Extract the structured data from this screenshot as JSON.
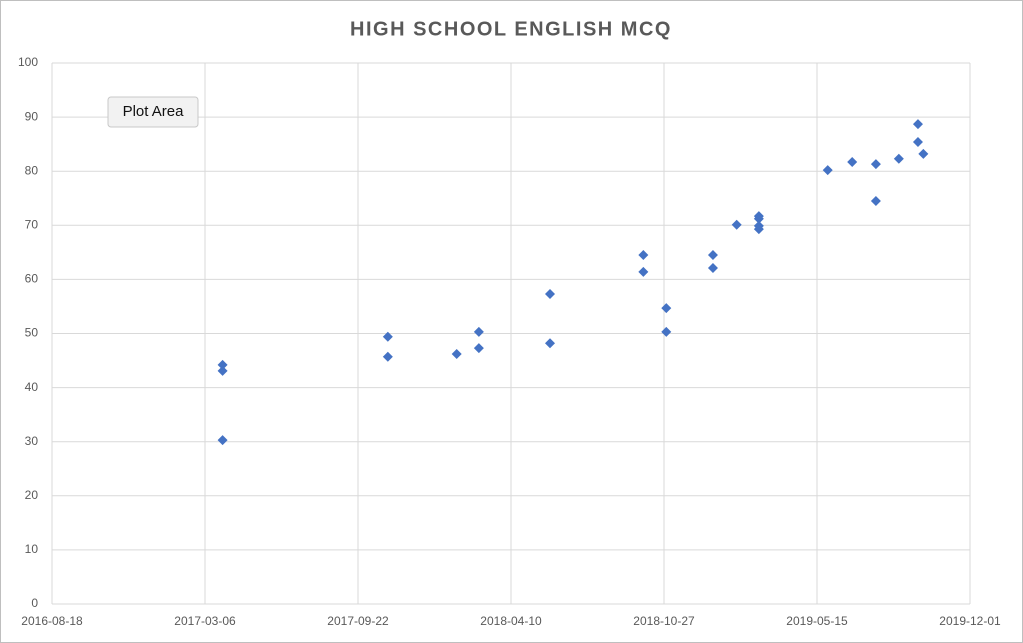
{
  "chart_data": {
    "type": "scatter",
    "title": "HIGH SCHOOL ENGLISH MCQ",
    "tooltip": "Plot Area",
    "series": [
      {
        "color": "#4472c4",
        "x": [
          "2017-03-29",
          "2017-03-29",
          "2017-03-29",
          "2017-10-31",
          "2017-10-31",
          "2018-01-29",
          "2018-02-27",
          "2018-02-27",
          "2018-05-31",
          "2018-05-31",
          "2018-09-30",
          "2018-09-30",
          "2018-10-30",
          "2018-10-30",
          "2018-12-30",
          "2018-12-30",
          "2019-01-30",
          "2019-02-28",
          "2019-02-28",
          "2019-02-28",
          "2019-02-28",
          "2019-05-29",
          "2019-06-30",
          "2019-07-31",
          "2019-07-31",
          "2019-08-30",
          "2019-09-24",
          "2019-09-24",
          "2019-10-01"
        ],
        "values": [
          44.2,
          43.1,
          30.3,
          49.4,
          45.7,
          46.2,
          50.3,
          47.3,
          57.3,
          48.2,
          64.5,
          61.4,
          54.7,
          50.3,
          64.5,
          62.1,
          70.1,
          71.7,
          71.2,
          69.9,
          69.3,
          80.2,
          81.7,
          81.3,
          74.5,
          82.3,
          88.7,
          85.4,
          83.2
        ]
      }
    ],
    "xlim": [
      "2016-08-18",
      "2019-12-01"
    ],
    "xticks": [
      "2016-08-18",
      "2017-03-06",
      "2017-09-22",
      "2018-04-10",
      "2018-10-27",
      "2019-05-15",
      "2019-12-01"
    ],
    "ylim": [
      0,
      100
    ],
    "yticks": [
      0,
      10,
      20,
      30,
      40,
      50,
      60,
      70,
      80,
      90,
      100
    ],
    "grid": true
  }
}
